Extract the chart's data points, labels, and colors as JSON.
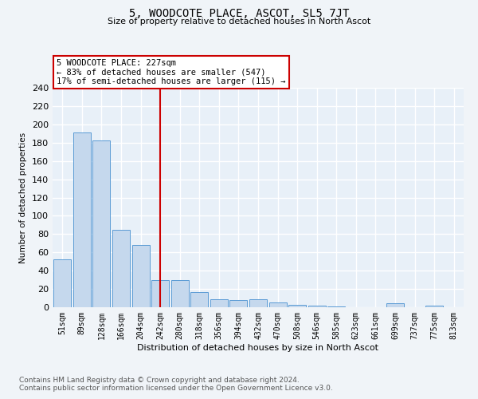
{
  "title": "5, WOODCOTE PLACE, ASCOT, SL5 7JT",
  "subtitle": "Size of property relative to detached houses in North Ascot",
  "xlabel": "Distribution of detached houses by size in North Ascot",
  "ylabel": "Number of detached properties",
  "categories": [
    "51sqm",
    "89sqm",
    "128sqm",
    "166sqm",
    "204sqm",
    "242sqm",
    "280sqm",
    "318sqm",
    "356sqm",
    "394sqm",
    "432sqm",
    "470sqm",
    "508sqm",
    "546sqm",
    "585sqm",
    "623sqm",
    "661sqm",
    "699sqm",
    "737sqm",
    "775sqm",
    "813sqm"
  ],
  "values": [
    52,
    191,
    182,
    85,
    68,
    30,
    30,
    17,
    9,
    8,
    9,
    5,
    3,
    2,
    1,
    0,
    0,
    4,
    0,
    2,
    0
  ],
  "bar_color": "#c5d8ed",
  "bar_edge_color": "#5b9bd5",
  "vline_x": 5,
  "vline_color": "#cc0000",
  "ylim": [
    0,
    240
  ],
  "yticks": [
    0,
    20,
    40,
    60,
    80,
    100,
    120,
    140,
    160,
    180,
    200,
    220,
    240
  ],
  "annotation_box_color": "#cc0000",
  "annotation_line1": "5 WOODCOTE PLACE: 227sqm",
  "annotation_line2": "← 83% of detached houses are smaller (547)",
  "annotation_line3": "17% of semi-detached houses are larger (115) →",
  "footnote1": "Contains HM Land Registry data © Crown copyright and database right 2024.",
  "footnote2": "Contains public sector information licensed under the Open Government Licence v3.0.",
  "background_color": "#f0f4f8",
  "plot_bg_color": "#e8f0f8",
  "grid_color": "#ffffff"
}
